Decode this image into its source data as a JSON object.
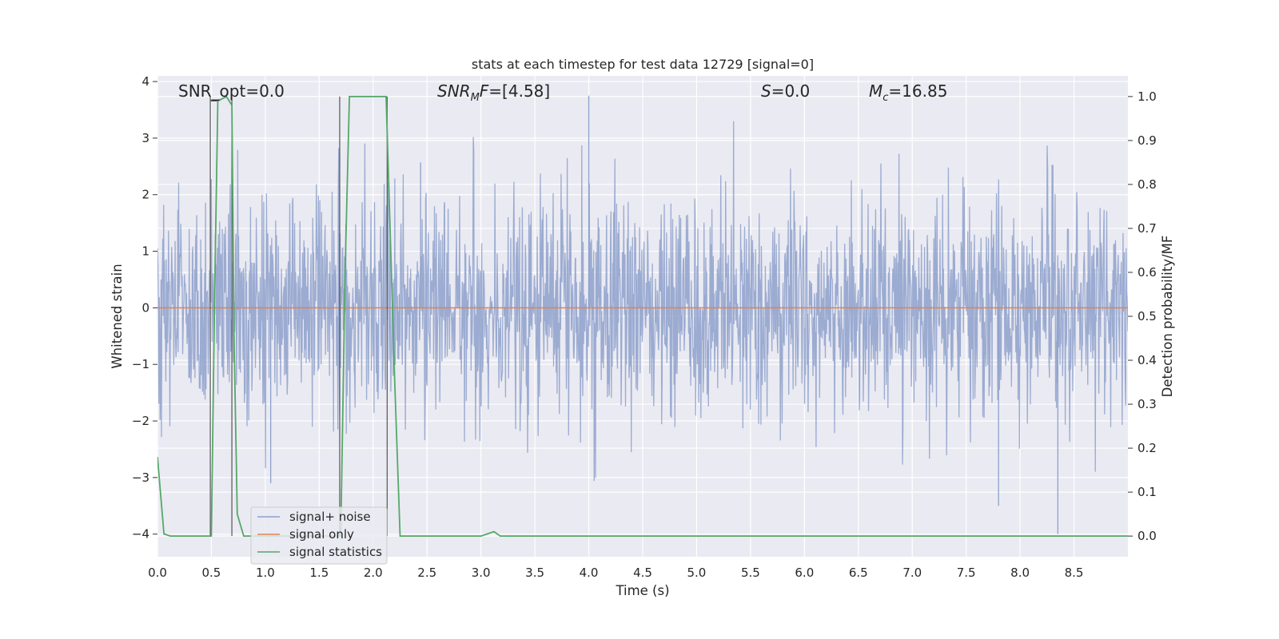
{
  "chart_data": {
    "type": "line",
    "title": "stats at each timestep for test data 12729 [signal=0]",
    "xlabel": "Time (s)",
    "ylabel": "Whitened strain",
    "y2label": "Detection probability/MF",
    "xlim": [
      0.0,
      9.0
    ],
    "ylim": [
      -4.4,
      4.1
    ],
    "y2lim": [
      -0.047,
      1.047
    ],
    "x_ticks": [
      "0.0",
      "0.5",
      "1.0",
      "1.5",
      "2.0",
      "2.5",
      "3.0",
      "3.5",
      "4.0",
      "4.5",
      "5.0",
      "5.5",
      "6.0",
      "6.5",
      "7.0",
      "7.5",
      "8.0",
      "8.5"
    ],
    "y_ticks": [
      "4",
      "3",
      "2",
      "1",
      "0",
      "−1",
      "−2",
      "−3",
      "−4"
    ],
    "y2_ticks": [
      "1.0",
      "0.9",
      "0.8",
      "0.7",
      "0.6",
      "0.5",
      "0.4",
      "0.3",
      "0.2",
      "0.1",
      "0.0"
    ],
    "grid": true,
    "legend_position": "lower-left",
    "annotations": {
      "snr_opt": "SNR_opt=0.0",
      "snr_mf": "=[4.58]",
      "s_value": "=0.0",
      "mc_value": "=16.85"
    },
    "series": [
      {
        "name": "signal+ noise",
        "axis": "left",
        "color": "#8da0cb",
        "style": "dense noise, approx. standard normal, sampled over 0–9 s",
        "extremes": [
          [
            4.0,
            3.75
          ],
          [
            2.44,
            2.57
          ],
          [
            8.35,
            -4.0
          ],
          [
            7.8,
            -3.5
          ],
          [
            1.05,
            -3.1
          ]
        ]
      },
      {
        "name": "signal only",
        "axis": "left",
        "color": "#dd8452",
        "x": [
          0.0,
          9.0
        ],
        "y": [
          0.0,
          0.0
        ]
      },
      {
        "name": "signal statistics",
        "axis": "right",
        "color": "#55a868",
        "x": [
          0.0,
          0.06,
          0.12,
          0.5,
          0.53,
          0.56,
          0.64,
          0.69,
          0.71,
          0.74,
          0.8,
          1.7,
          1.74,
          1.78,
          2.12,
          2.2,
          2.25,
          3.0,
          3.06,
          3.12,
          3.18,
          3.24,
          9.0
        ],
        "y": [
          0.18,
          0.005,
          0.0,
          0.0,
          0.55,
          0.99,
          1.0,
          0.98,
          0.45,
          0.05,
          0.0,
          0.0,
          0.6,
          1.0,
          1.0,
          0.35,
          0.0,
          0.0,
          0.005,
          0.01,
          0.0,
          0.0,
          0.0
        ]
      }
    ],
    "event_markers": [
      {
        "start": 0.49,
        "end": 0.69
      },
      {
        "start": 1.69,
        "end": 2.13
      }
    ]
  }
}
